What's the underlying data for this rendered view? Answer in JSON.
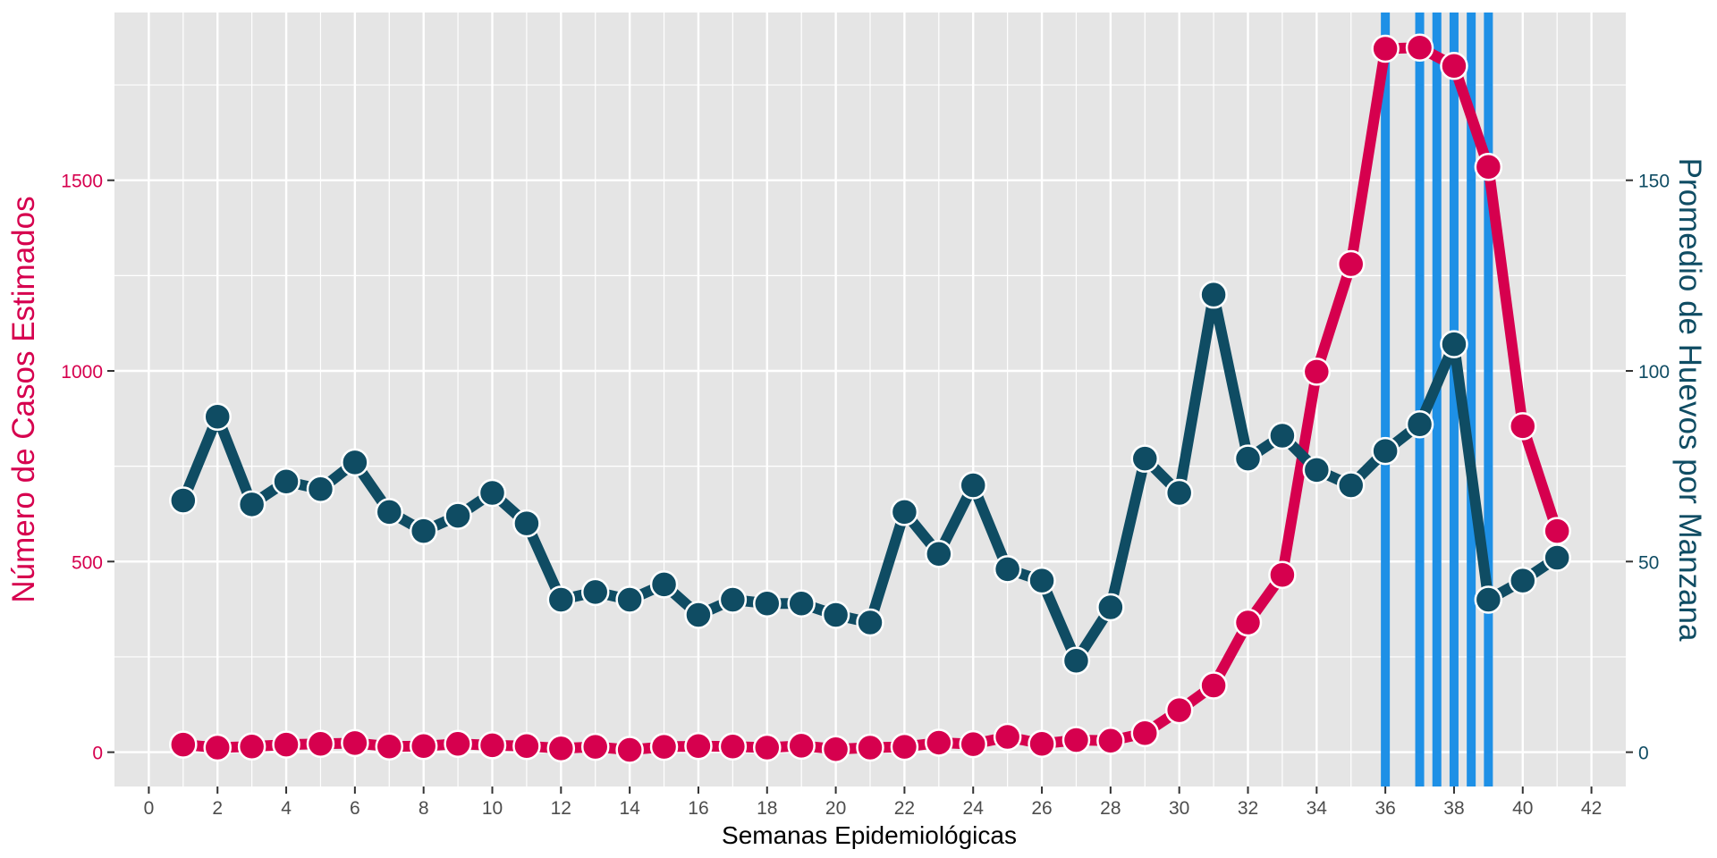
{
  "chart_data": {
    "type": "line",
    "xlabel": "Semanas Epidemiológicas",
    "ylabel_left": "Número de Casos Estimados",
    "ylabel_right": "Promedio de Huevos por Manzana",
    "xlim": [
      -1,
      43
    ],
    "ylim_left": [
      -90,
      1940
    ],
    "ylim_right": [
      -9,
      194
    ],
    "x_ticks": [
      0,
      2,
      4,
      6,
      8,
      10,
      12,
      14,
      16,
      18,
      20,
      22,
      24,
      26,
      28,
      30,
      32,
      34,
      36,
      38,
      40,
      42
    ],
    "y_left_ticks": [
      0,
      500,
      1000,
      1500
    ],
    "y_right_ticks": [
      0,
      50,
      100,
      150
    ],
    "grid": true,
    "vertical_lines": [
      36,
      37,
      37.5,
      38,
      38.5,
      39
    ],
    "x": [
      1,
      2,
      3,
      4,
      5,
      6,
      7,
      8,
      9,
      10,
      11,
      12,
      13,
      14,
      15,
      16,
      17,
      18,
      19,
      20,
      21,
      22,
      23,
      24,
      25,
      26,
      27,
      28,
      29,
      30,
      31,
      32,
      33,
      34,
      35,
      36,
      37,
      38,
      39,
      40,
      41
    ],
    "series": [
      {
        "axis": "left",
        "values": [
          20,
          12,
          15,
          20,
          22,
          24,
          15,
          16,
          22,
          18,
          16,
          10,
          14,
          6,
          14,
          16,
          15,
          12,
          17,
          8,
          12,
          14,
          25,
          21,
          40,
          22,
          32,
          30,
          50,
          110,
          175,
          340,
          465,
          998,
          1280,
          1845,
          1848,
          1800,
          1535,
          855,
          580
        ]
      },
      {
        "axis": "right",
        "values": [
          66,
          88,
          65,
          71,
          69,
          76,
          63,
          58,
          62,
          68,
          60,
          40,
          42,
          40,
          44,
          36,
          40,
          39,
          39,
          36,
          34,
          63,
          52,
          70,
          48,
          45,
          24,
          38,
          77,
          68,
          120,
          77,
          83,
          74,
          70,
          79,
          86,
          107,
          40,
          45,
          51
        ]
      }
    ],
    "colors": {
      "cases": "#D6004E",
      "eggs": "#0F4C63",
      "vertical_line": "#1E90E6",
      "panel": "#E5E5E5",
      "grid": "#FFFFFF",
      "tick_label": "#4D4D4D"
    }
  }
}
